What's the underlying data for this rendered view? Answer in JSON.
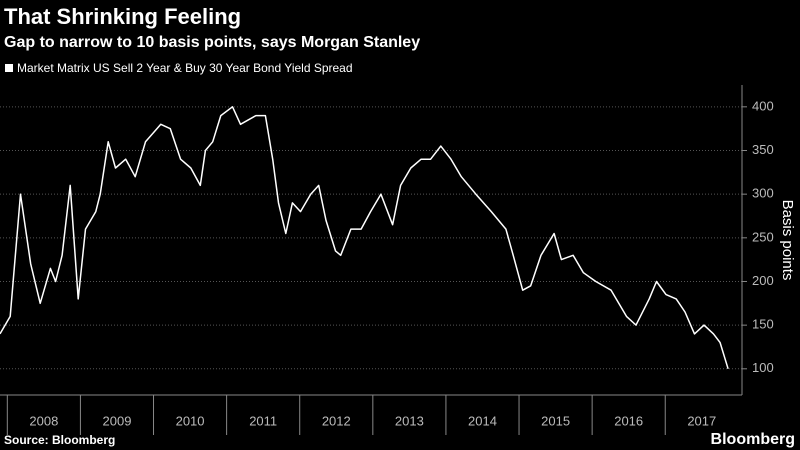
{
  "chart_data": {
    "type": "line",
    "title": "That Shrinking Feeling",
    "subtitle": "Gap to narrow to 10 basis points, says Morgan Stanley",
    "y_label": "Basis points",
    "source": "Source: Bloomberg",
    "brand": "Bloomberg",
    "x": [
      2007.9,
      2008.04,
      2008.18,
      2008.32,
      2008.45,
      2008.59,
      2008.66,
      2008.75,
      2008.86,
      2008.97,
      2009.07,
      2009.21,
      2009.27,
      2009.38,
      2009.48,
      2009.62,
      2009.75,
      2009.89,
      2010.1,
      2010.23,
      2010.37,
      2010.51,
      2010.64,
      2010.71,
      2010.81,
      2010.92,
      2011.08,
      2011.19,
      2011.4,
      2011.53,
      2011.63,
      2011.71,
      2011.81,
      2011.9,
      2012.01,
      2012.15,
      2012.26,
      2012.36,
      2012.49,
      2012.56,
      2012.7,
      2012.84,
      2012.97,
      2013.11,
      2013.27,
      2013.38,
      2013.52,
      2013.66,
      2013.79,
      2013.93,
      2014.07,
      2014.21,
      2014.41,
      2014.62,
      2014.82,
      2014.92,
      2015.05,
      2015.16,
      2015.3,
      2015.48,
      2015.58,
      2015.74,
      2015.88,
      2016.05,
      2016.26,
      2016.47,
      2016.6,
      2016.78,
      2016.88,
      2017.01,
      2017.15,
      2017.27,
      2017.4,
      2017.53,
      2017.66,
      2017.75,
      2017.86
    ],
    "series": [
      {
        "name": "Market Matrix US Sell 2 Year & Buy 30 Year Bond Yield Spread",
        "color": "#ffffff",
        "values": [
          140,
          160,
          300,
          220,
          175,
          215,
          200,
          230,
          310,
          180,
          260,
          280,
          300,
          360,
          330,
          340,
          320,
          360,
          380,
          375,
          340,
          330,
          310,
          350,
          360,
          390,
          400,
          380,
          390,
          390,
          340,
          290,
          255,
          290,
          280,
          300,
          310,
          270,
          235,
          230,
          260,
          260,
          280,
          300,
          265,
          310,
          330,
          340,
          340,
          355,
          340,
          320,
          300,
          280,
          260,
          230,
          190,
          195,
          230,
          255,
          225,
          230,
          210,
          200,
          190,
          160,
          150,
          180,
          200,
          185,
          180,
          165,
          140,
          150,
          140,
          130,
          100
        ]
      }
    ],
    "xlim": [
      2007.9,
      2018.05
    ],
    "xticks": [
      {
        "value": 2008.5,
        "label": "2008"
      },
      {
        "value": 2009.5,
        "label": "2009"
      },
      {
        "value": 2010.5,
        "label": "2010"
      },
      {
        "value": 2011.5,
        "label": "2011"
      },
      {
        "value": 2012.5,
        "label": "2012"
      },
      {
        "value": 2013.5,
        "label": "2013"
      },
      {
        "value": 2014.5,
        "label": "2014"
      },
      {
        "value": 2015.5,
        "label": "2015"
      },
      {
        "value": 2016.5,
        "label": "2016"
      },
      {
        "value": 2017.5,
        "label": "2017"
      }
    ],
    "ylim": [
      70,
      425
    ],
    "yticks": [
      100,
      150,
      200,
      250,
      300,
      350,
      400
    ],
    "grid": true
  }
}
